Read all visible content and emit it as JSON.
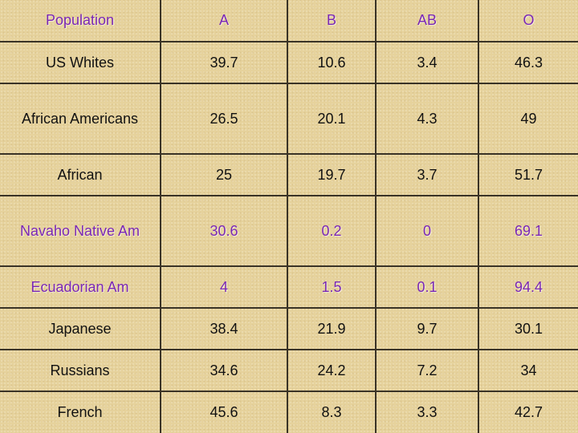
{
  "table": {
    "headers": [
      "Population",
      "A",
      "B",
      "AB",
      "O"
    ],
    "rows": [
      [
        "US Whites",
        "39.7",
        "10.6",
        "3.4",
        "46.3"
      ],
      [
        "African Americans",
        "26.5",
        "20.1",
        "4.3",
        "49"
      ],
      [
        "African",
        "25",
        "19.7",
        "3.7",
        "51.7"
      ],
      [
        "Navaho Native Am",
        "30.6",
        "0.2",
        "0",
        "69.1"
      ],
      [
        "Ecuadorian Am",
        "4",
        "1.5",
        "0.1",
        "94.4"
      ],
      [
        "Japanese",
        "38.4",
        "21.9",
        "9.7",
        "30.1"
      ],
      [
        "Russians",
        "34.6",
        "24.2",
        "7.2",
        "34"
      ],
      [
        "French",
        "45.6",
        "8.3",
        "3.3",
        "42.7"
      ]
    ]
  },
  "colors": {
    "background": "#e6d29c",
    "header_text": "#7a27b5",
    "highlight_text": "#7a27b5",
    "body_text": "#111111",
    "grid_lines": "#3a3326"
  }
}
